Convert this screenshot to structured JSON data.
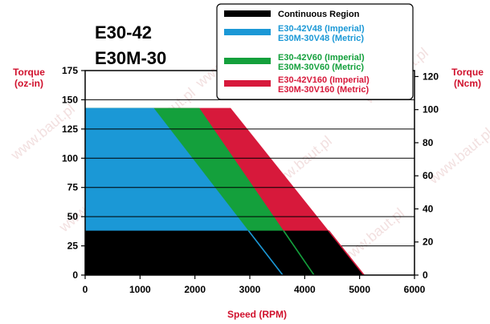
{
  "page": {
    "title_line1": "E30-42",
    "title_line2": "E30M-30",
    "watermark": "www.baut.pl"
  },
  "chart_data": {
    "type": "area",
    "xlabel": "Speed (RPM)",
    "ylabel_left": [
      "Torque",
      "(oz-in)"
    ],
    "ylabel_right": [
      "Torque",
      "(Ncm)"
    ],
    "xlim": [
      0,
      6000
    ],
    "ylim_left": [
      0,
      175
    ],
    "ylim_right": [
      0,
      123.6
    ],
    "x_ticks": [
      0,
      1000,
      2000,
      3000,
      4000,
      5000,
      6000
    ],
    "y_ticks_left": [
      0,
      25,
      50,
      75,
      100,
      125,
      150,
      175
    ],
    "y_ticks_right": [
      0,
      20,
      40,
      60,
      80,
      100,
      120
    ],
    "grid": "horizontal",
    "legend_position": "top-right",
    "series": [
      {
        "name": "E30-42V160 (Imperial)",
        "name2": "E30M-30V160 (Metric)",
        "color": "#d7193b",
        "x": [
          0,
          2650,
          5080
        ],
        "y": [
          143,
          143,
          0
        ]
      },
      {
        "name": "E30-42V60 (Imperial)",
        "name2": "E30M-30V60 (Metric)",
        "color": "#14a03c",
        "x": [
          0,
          2080,
          4170
        ],
        "y": [
          143,
          143,
          0
        ]
      },
      {
        "name": "E30-42V48 (Imperial)",
        "name2": "E30M-30V48 (Metric)",
        "color": "#1b98d6",
        "x": [
          0,
          1250,
          3600
        ],
        "y": [
          143,
          143,
          0
        ]
      },
      {
        "name": "Continuous Region",
        "color": "#000000",
        "x": [
          0,
          4450,
          5080
        ],
        "y": [
          38,
          38,
          0
        ]
      }
    ],
    "legend": [
      {
        "label": "Continuous Region",
        "color": "#000000",
        "text_color": "#000000"
      },
      {
        "label": "E30-42V48 (Imperial)",
        "label2": "E30M-30V48 (Metric)",
        "color": "#1b98d6",
        "text_color": "#1b98d6"
      },
      {
        "label": "E30-42V60 (Imperial)",
        "label2": "E30M-30V60 (Metric)",
        "color": "#14a03c",
        "text_color": "#14a03c"
      },
      {
        "label": "E30-42V160 (Imperial)",
        "label2": "E30M-30V160 (Metric)",
        "color": "#d7193b",
        "text_color": "#d7193b"
      }
    ]
  }
}
